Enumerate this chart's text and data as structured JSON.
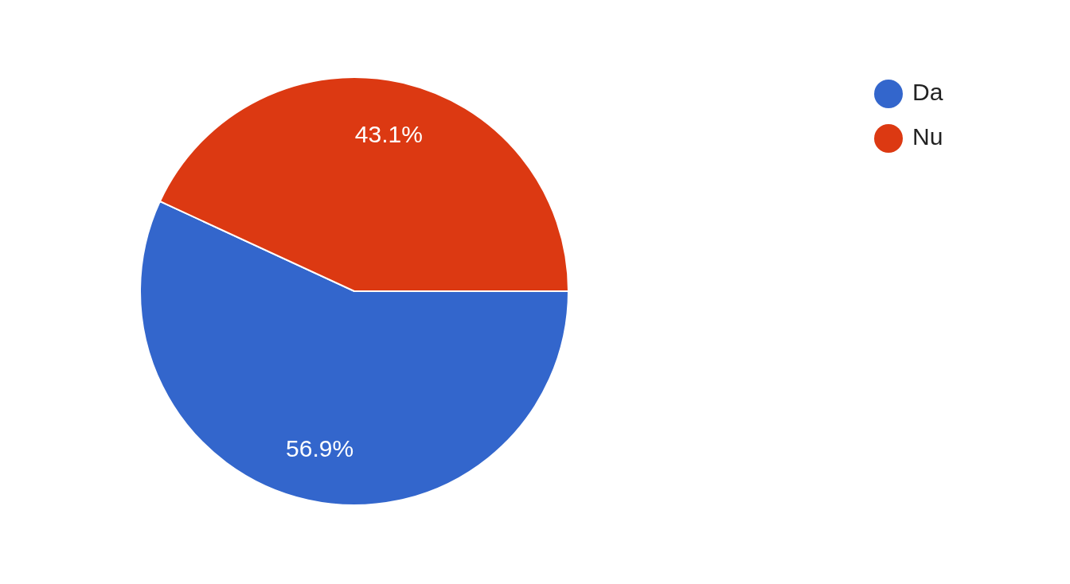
{
  "chart_data": {
    "type": "pie",
    "categories": [
      "Da",
      "Nu"
    ],
    "values": [
      56.9,
      43.1
    ],
    "colors": [
      "#3366cc",
      "#dc3912"
    ],
    "value_labels": [
      "56.9%",
      "43.1%"
    ],
    "legend": "top right"
  }
}
